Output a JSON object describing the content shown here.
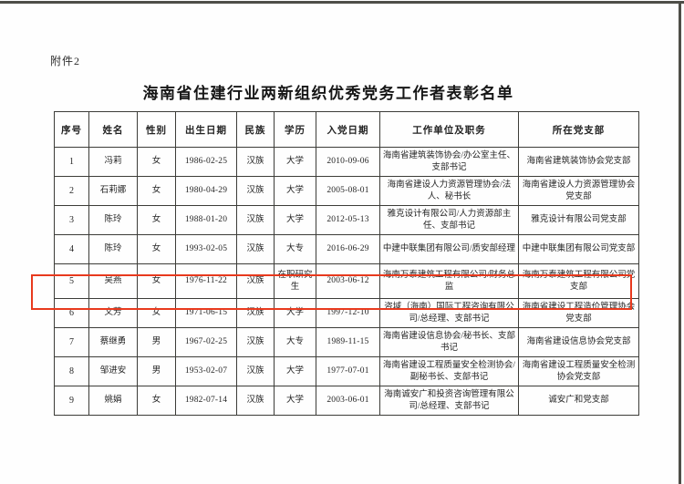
{
  "page": {
    "attachment_label": "附件2",
    "title": "海南省住建行业两新组织优秀党务工作者表彰名单"
  },
  "table": {
    "headers": [
      "序号",
      "姓名",
      "性别",
      "出生日期",
      "民族",
      "学历",
      "入党日期",
      "工作单位及职务",
      "所在党支部"
    ],
    "rows": [
      [
        "1",
        "冯莉",
        "女",
        "1986-02-25",
        "汉族",
        "大学",
        "2010-09-06",
        "海南省建筑装饰协会/办公室主任、支部书记",
        "海南省建筑装饰协会党支部"
      ],
      [
        "2",
        "石莉娜",
        "女",
        "1980-04-29",
        "汉族",
        "大学",
        "2005-08-01",
        "海南省建设人力资源管理协会/法人、秘书长",
        "海南省建设人力资源管理协会党支部"
      ],
      [
        "3",
        "陈玲",
        "女",
        "1988-01-20",
        "汉族",
        "大学",
        "2012-05-13",
        "雅克设计有限公司/人力资源部主任、支部书记",
        "雅克设计有限公司党支部"
      ],
      [
        "4",
        "陈玲",
        "女",
        "1993-02-05",
        "汉族",
        "大专",
        "2016-06-29",
        "中建中联集团有限公司/质安部经理",
        "中建中联集团有限公司党支部"
      ],
      [
        "5",
        "吴燕",
        "女",
        "1976-11-22",
        "汉族",
        "在职研究生",
        "2003-06-12",
        "海南万泰建筑工程有限公司/财务总监",
        "海南万泰建筑工程有限公司党支部"
      ],
      [
        "6",
        "文芳",
        "女",
        "1971-06-15",
        "汉族",
        "大学",
        "1997-12-10",
        "咨域（海南）国际工程咨询有限公司/总经理、支部书记",
        "海南省建设工程造价管理协会党支部"
      ],
      [
        "7",
        "蔡继勇",
        "男",
        "1967-02-25",
        "汉族",
        "大专",
        "1989-11-15",
        "海南省建设信息协会/秘书长、支部书记",
        "海南省建设信息协会党支部"
      ],
      [
        "8",
        "邹进安",
        "男",
        "1953-02-07",
        "汉族",
        "大学",
        "1977-07-01",
        "海南省建设工程质量安全检测协会/副秘书长、支部书记",
        "海南省建设工程质量安全检测协会党支部"
      ],
      [
        "9",
        "姚娟",
        "女",
        "1982-07-14",
        "汉族",
        "大学",
        "2003-06-01",
        "海南诚安广和投资咨询管理有限公司/总经理、支部书记",
        "诚安广和党支部"
      ]
    ],
    "highlighted_row_number": "5",
    "highlight_color": "#e8391d"
  }
}
